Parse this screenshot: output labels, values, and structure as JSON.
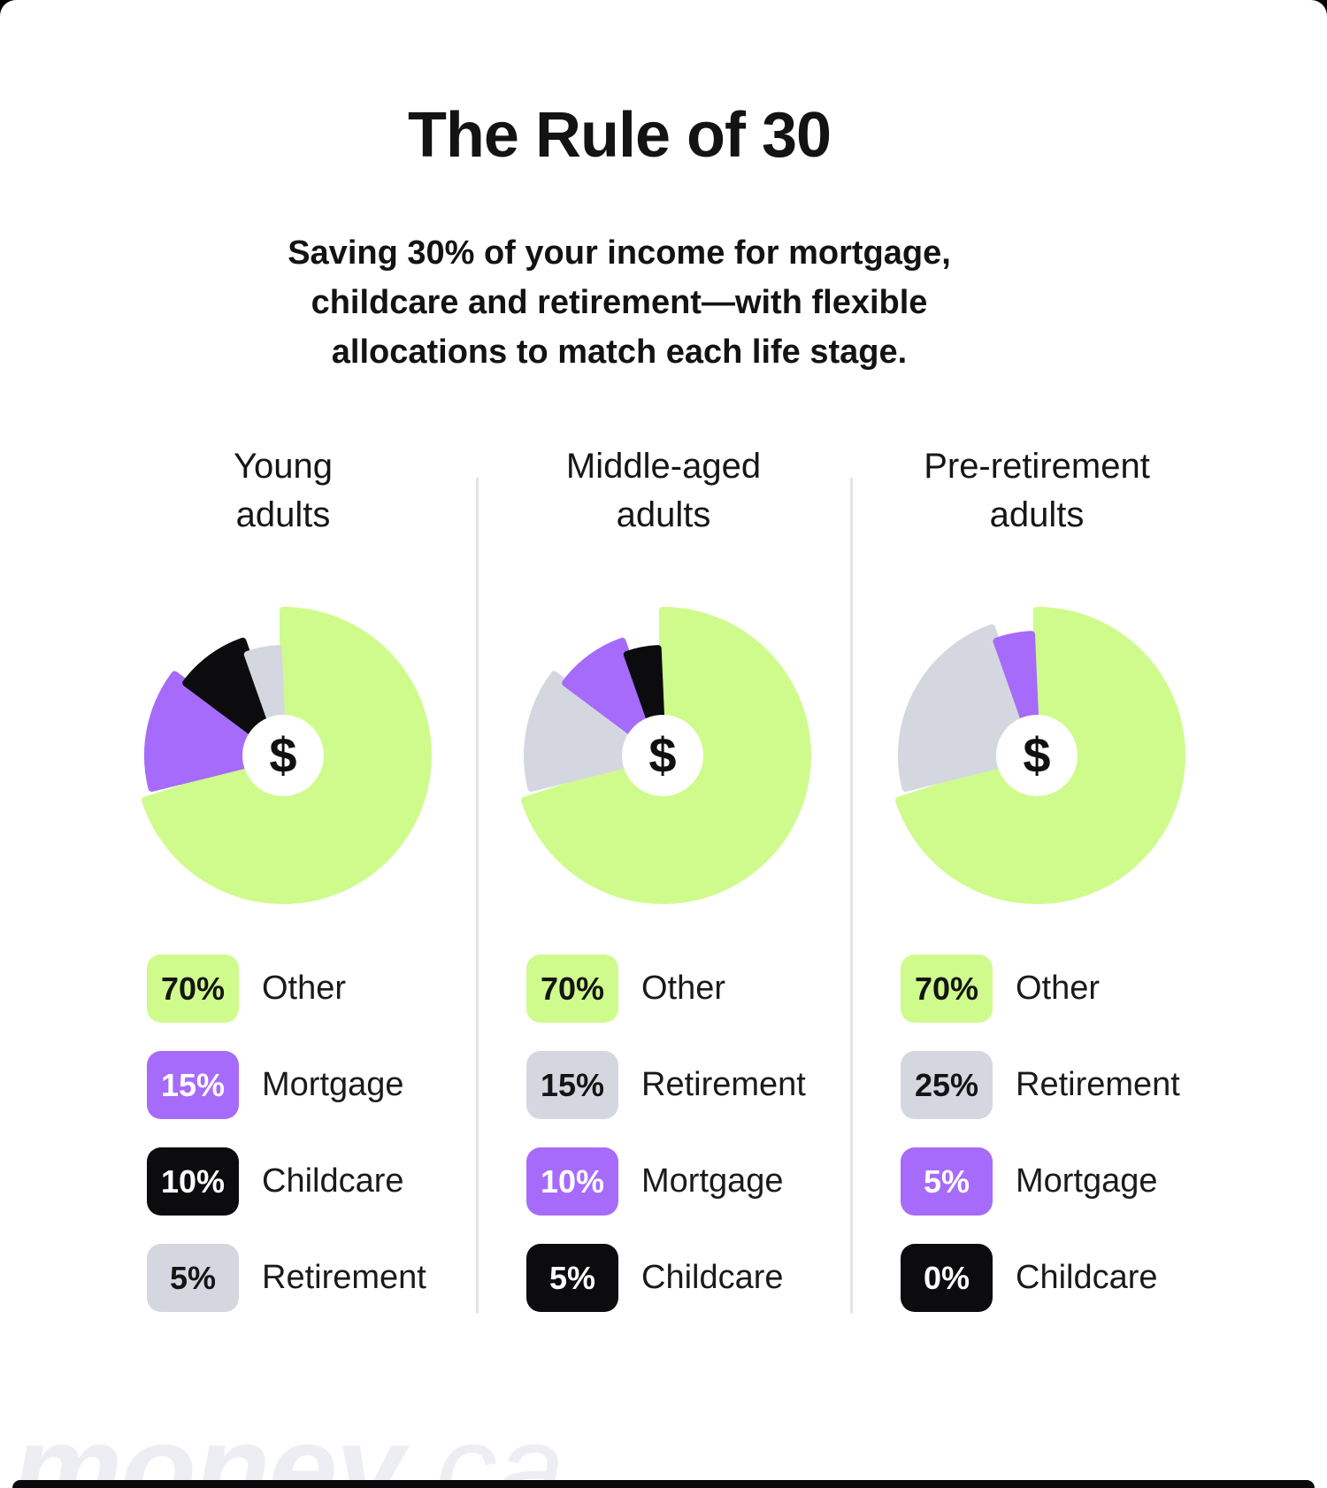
{
  "page": {
    "title": "The Rule of 30",
    "subtitle": "Saving 30% of your income for mortgage, childcare and retirement—with flexible allocations to match each life stage.",
    "currency_symbol": "$",
    "watermark_bold": "money",
    "watermark_light": ".ca"
  },
  "colors": {
    "green": "#cffb8c",
    "purple": "#a66bfa",
    "gray": "#d5d7e0",
    "black": "#0c0c0e",
    "divider": "#e3e3e9",
    "card_bg": "#ffffff",
    "page_bg": "#000000",
    "text": "#131313",
    "watermark": "#edeef3"
  },
  "chart_data": [
    {
      "type": "pie",
      "title_line1": "Young",
      "title_line2": "adults",
      "center_label": "$",
      "legend_position": "bottom",
      "slices": [
        {
          "label": "Other",
          "value": 70,
          "pct": "70%",
          "color": "green"
        },
        {
          "label": "Mortgage",
          "value": 15,
          "pct": "15%",
          "color": "purple"
        },
        {
          "label": "Childcare",
          "value": 10,
          "pct": "10%",
          "color": "black"
        },
        {
          "label": "Retirement",
          "value": 5,
          "pct": "5%",
          "color": "gray"
        }
      ]
    },
    {
      "type": "pie",
      "title_line1": "Middle-aged",
      "title_line2": "adults",
      "center_label": "$",
      "legend_position": "bottom",
      "slices": [
        {
          "label": "Other",
          "value": 70,
          "pct": "70%",
          "color": "green"
        },
        {
          "label": "Retirement",
          "value": 15,
          "pct": "15%",
          "color": "gray"
        },
        {
          "label": "Mortgage",
          "value": 10,
          "pct": "10%",
          "color": "purple"
        },
        {
          "label": "Childcare",
          "value": 5,
          "pct": "5%",
          "color": "black"
        }
      ]
    },
    {
      "type": "pie",
      "title_line1": "Pre-retirement",
      "title_line2": "adults",
      "center_label": "$",
      "legend_position": "bottom",
      "slices": [
        {
          "label": "Other",
          "value": 70,
          "pct": "70%",
          "color": "green"
        },
        {
          "label": "Retirement",
          "value": 25,
          "pct": "25%",
          "color": "gray"
        },
        {
          "label": "Mortgage",
          "value": 5,
          "pct": "5%",
          "color": "purple"
        },
        {
          "label": "Childcare",
          "value": 0,
          "pct": "0%",
          "color": "black"
        }
      ]
    }
  ]
}
